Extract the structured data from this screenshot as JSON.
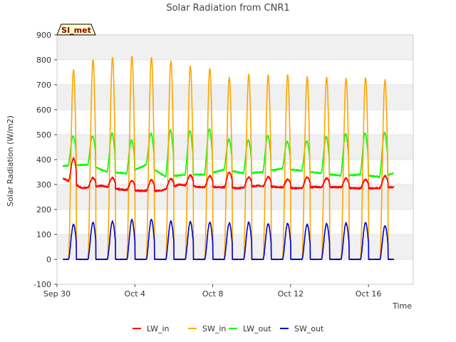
{
  "chart_data": {
    "type": "line",
    "title": "Solar Radiation from CNR1",
    "xlabel": "Time",
    "ylabel": "Solar Radiation (W/m2)",
    "station_tag": "SI_met",
    "x_ticks": [
      {
        "day": 0,
        "label": "Sep 30"
      },
      {
        "day": 4,
        "label": "Oct 4"
      },
      {
        "day": 8,
        "label": "Oct 8"
      },
      {
        "day": 12,
        "label": "Oct 12"
      },
      {
        "day": 16,
        "label": "Oct 16"
      }
    ],
    "xlim_days": [
      0,
      18.3
    ],
    "ylim": [
      -100,
      900
    ],
    "y_ticks": [
      -100,
      0,
      100,
      200,
      300,
      400,
      500,
      600,
      700,
      800,
      900
    ],
    "grid": "horizontal bands",
    "legend_position": "bottom",
    "series": [
      {
        "name": "LW_in",
        "color": "#ff0000",
        "peaks": [
          {
            "day": 0.4,
            "value": 375
          },
          {
            "day": 0.8,
            "value": 405
          },
          {
            "day": 1.8,
            "value": 327
          },
          {
            "day": 2.8,
            "value": 328
          },
          {
            "day": 3.8,
            "value": 315
          },
          {
            "day": 4.8,
            "value": 318
          },
          {
            "day": 5.8,
            "value": 322
          },
          {
            "day": 6.8,
            "value": 338
          },
          {
            "day": 7.8,
            "value": 335
          },
          {
            "day": 8.8,
            "value": 350
          },
          {
            "day": 9.8,
            "value": 330
          },
          {
            "day": 10.8,
            "value": 330
          },
          {
            "day": 11.8,
            "value": 320
          },
          {
            "day": 12.8,
            "value": 330
          },
          {
            "day": 13.8,
            "value": 325
          },
          {
            "day": 14.8,
            "value": 325
          },
          {
            "day": 15.8,
            "value": 320
          },
          {
            "day": 16.8,
            "value": 335
          }
        ],
        "troughs": [
          {
            "day": 0.2,
            "value": 330
          },
          {
            "day": 1.3,
            "value": 285
          },
          {
            "day": 2.3,
            "value": 295
          },
          {
            "day": 3.3,
            "value": 280
          },
          {
            "day": 4.3,
            "value": 275
          },
          {
            "day": 5.3,
            "value": 275
          },
          {
            "day": 6.3,
            "value": 300
          },
          {
            "day": 7.3,
            "value": 290
          },
          {
            "day": 8.3,
            "value": 290
          },
          {
            "day": 9.3,
            "value": 285
          },
          {
            "day": 10.3,
            "value": 295
          },
          {
            "day": 11.3,
            "value": 290
          },
          {
            "day": 12.3,
            "value": 285
          },
          {
            "day": 13.3,
            "value": 290
          },
          {
            "day": 14.3,
            "value": 290
          },
          {
            "day": 15.3,
            "value": 285
          },
          {
            "day": 16.3,
            "value": 285
          },
          {
            "day": 17.3,
            "value": 290
          }
        ]
      },
      {
        "name": "SW_in",
        "color": "#ffa500",
        "daily_peaks": [
          {
            "day": 0.85,
            "value": 760
          },
          {
            "day": 1.85,
            "value": 800
          },
          {
            "day": 2.85,
            "value": 808
          },
          {
            "day": 3.85,
            "value": 815
          },
          {
            "day": 4.85,
            "value": 810
          },
          {
            "day": 5.85,
            "value": 795
          },
          {
            "day": 6.85,
            "value": 775
          },
          {
            "day": 7.85,
            "value": 765
          },
          {
            "day": 8.85,
            "value": 730
          },
          {
            "day": 9.85,
            "value": 740
          },
          {
            "day": 10.85,
            "value": 740
          },
          {
            "day": 11.85,
            "value": 740
          },
          {
            "day": 12.85,
            "value": 730
          },
          {
            "day": 13.85,
            "value": 732
          },
          {
            "day": 14.85,
            "value": 725
          },
          {
            "day": 15.85,
            "value": 728
          },
          {
            "day": 16.85,
            "value": 718
          }
        ],
        "night_value": 0
      },
      {
        "name": "LW_out",
        "color": "#00ff00",
        "daily_peaks": [
          {
            "day": 0.85,
            "value": 495
          },
          {
            "day": 1.85,
            "value": 495
          },
          {
            "day": 2.85,
            "value": 505
          },
          {
            "day": 3.85,
            "value": 478
          },
          {
            "day": 4.85,
            "value": 505
          },
          {
            "day": 5.85,
            "value": 518
          },
          {
            "day": 6.85,
            "value": 515
          },
          {
            "day": 7.85,
            "value": 522
          },
          {
            "day": 8.85,
            "value": 480
          },
          {
            "day": 9.85,
            "value": 478
          },
          {
            "day": 10.85,
            "value": 495
          },
          {
            "day": 11.85,
            "value": 472
          },
          {
            "day": 12.85,
            "value": 475
          },
          {
            "day": 13.85,
            "value": 492
          },
          {
            "day": 14.85,
            "value": 502
          },
          {
            "day": 15.85,
            "value": 505
          },
          {
            "day": 16.85,
            "value": 508
          }
        ],
        "night_min": [
          {
            "day": 0.3,
            "value": 375
          },
          {
            "day": 1.6,
            "value": 380
          },
          {
            "day": 2.6,
            "value": 350
          },
          {
            "day": 3.6,
            "value": 345
          },
          {
            "day": 4.6,
            "value": 380
          },
          {
            "day": 5.6,
            "value": 330
          },
          {
            "day": 6.6,
            "value": 340
          },
          {
            "day": 7.6,
            "value": 340
          },
          {
            "day": 8.6,
            "value": 360
          },
          {
            "day": 9.6,
            "value": 345
          },
          {
            "day": 10.6,
            "value": 350
          },
          {
            "day": 11.6,
            "value": 365
          },
          {
            "day": 12.6,
            "value": 355
          },
          {
            "day": 13.6,
            "value": 345
          },
          {
            "day": 14.6,
            "value": 335
          },
          {
            "day": 15.6,
            "value": 340
          },
          {
            "day": 16.6,
            "value": 330
          },
          {
            "day": 17.3,
            "value": 345
          }
        ]
      },
      {
        "name": "SW_out",
        "color": "#0000cd",
        "daily_peaks": [
          {
            "day": 0.85,
            "value": 140
          },
          {
            "day": 1.85,
            "value": 148
          },
          {
            "day": 2.85,
            "value": 152
          },
          {
            "day": 3.85,
            "value": 158
          },
          {
            "day": 4.85,
            "value": 160
          },
          {
            "day": 5.85,
            "value": 153
          },
          {
            "day": 6.85,
            "value": 150
          },
          {
            "day": 7.85,
            "value": 148
          },
          {
            "day": 8.85,
            "value": 145
          },
          {
            "day": 9.85,
            "value": 148
          },
          {
            "day": 10.85,
            "value": 142
          },
          {
            "day": 11.85,
            "value": 145
          },
          {
            "day": 12.85,
            "value": 140
          },
          {
            "day": 13.85,
            "value": 142
          },
          {
            "day": 14.85,
            "value": 145
          },
          {
            "day": 15.85,
            "value": 147
          },
          {
            "day": 16.85,
            "value": 135
          }
        ],
        "night_value": 0
      }
    ]
  }
}
